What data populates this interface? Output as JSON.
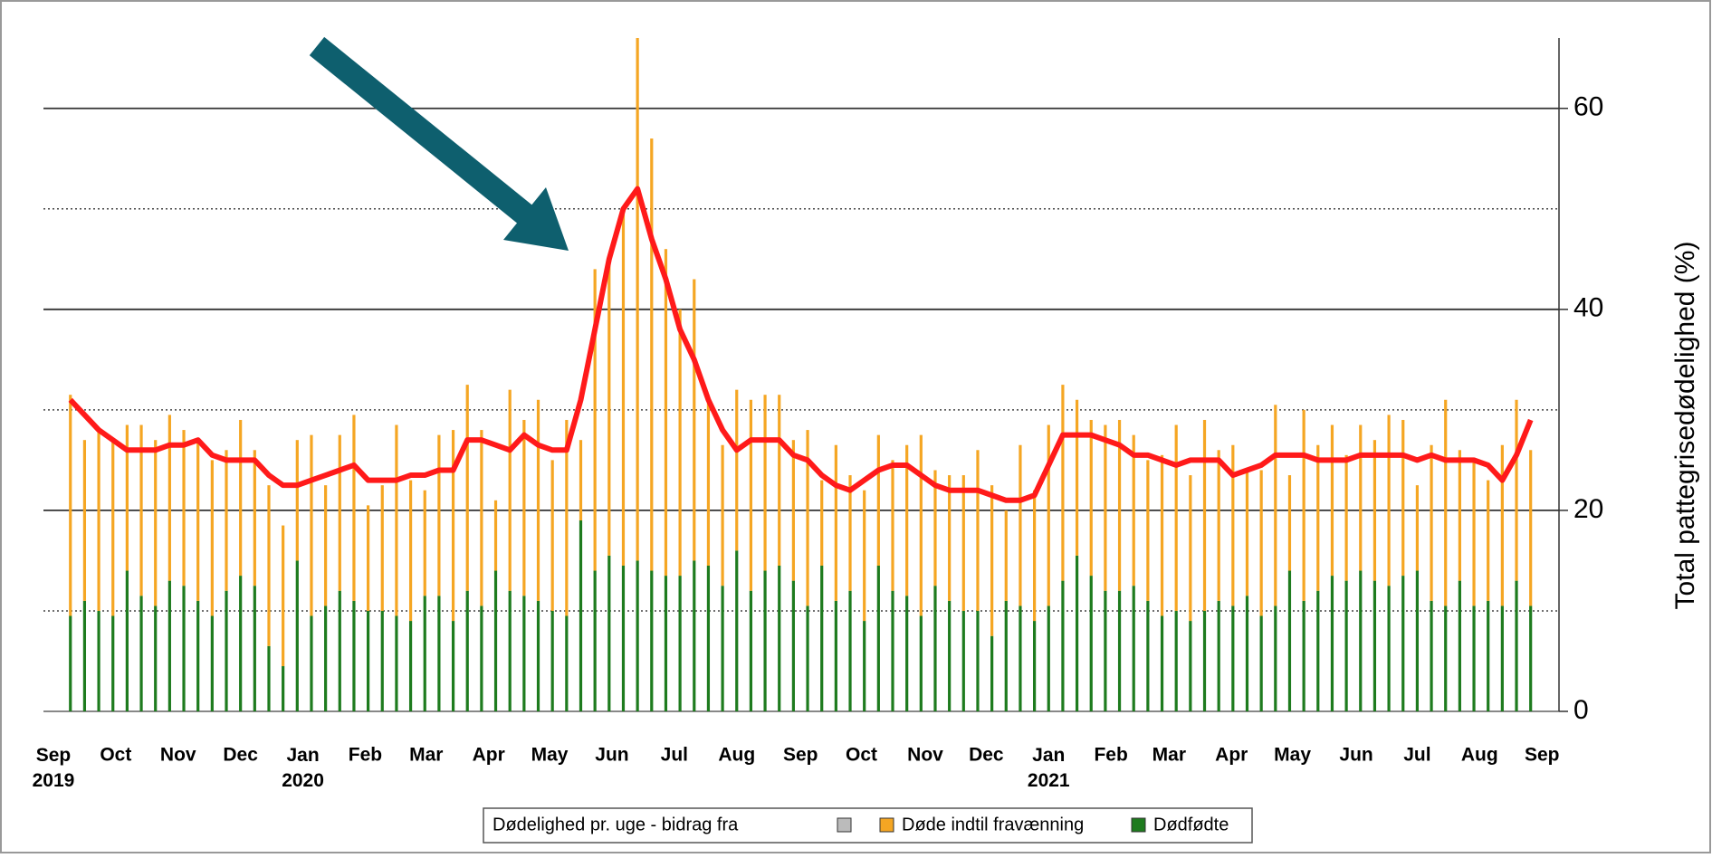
{
  "chart_data": {
    "type": "bar",
    "stacked": true,
    "ylabel": "Total pattegrisedødelighed (%)",
    "legend_title": "Dødelighed pr. uge - bidrag fra",
    "ylim": [
      0,
      67
    ],
    "yticks": [
      0,
      20,
      40,
      60
    ],
    "yminor": [
      10,
      30,
      50
    ],
    "grid": true,
    "xlim": [
      -1.9,
      105
    ],
    "xticks": [
      {
        "value": -1.2,
        "label": "Sep 2019"
      },
      {
        "value": 3.2,
        "label": "Oct"
      },
      {
        "value": 7.6,
        "label": "Nov"
      },
      {
        "value": 12,
        "label": "Dec"
      },
      {
        "value": 16.4,
        "label": "Jan 2020"
      },
      {
        "value": 20.8,
        "label": "Feb"
      },
      {
        "value": 25.1,
        "label": "Mar"
      },
      {
        "value": 29.5,
        "label": "Apr"
      },
      {
        "value": 33.8,
        "label": "May"
      },
      {
        "value": 38.2,
        "label": "Jun"
      },
      {
        "value": 42.6,
        "label": "Jul"
      },
      {
        "value": 47,
        "label": "Aug"
      },
      {
        "value": 51.5,
        "label": "Sep"
      },
      {
        "value": 55.8,
        "label": "Oct"
      },
      {
        "value": 60.3,
        "label": "Nov"
      },
      {
        "value": 64.6,
        "label": "Dec"
      },
      {
        "value": 69,
        "label": "Jan 2021"
      },
      {
        "value": 73.4,
        "label": "Feb"
      },
      {
        "value": 77.5,
        "label": "Mar"
      },
      {
        "value": 81.9,
        "label": "Apr"
      },
      {
        "value": 86.2,
        "label": "May"
      },
      {
        "value": 90.7,
        "label": "Jun"
      },
      {
        "value": 95,
        "label": "Jul"
      },
      {
        "value": 99.4,
        "label": "Aug"
      },
      {
        "value": 103.8,
        "label": "Sep"
      }
    ],
    "series": [
      {
        "name": "Dødfødte",
        "color": "#1e7b1e",
        "values": [
          9.5,
          11,
          10,
          9.5,
          14,
          11.5,
          10.5,
          13,
          12.5,
          11,
          9.5,
          12,
          13.5,
          12.5,
          6.5,
          4.5,
          15,
          9.5,
          10.5,
          12,
          11,
          10,
          10,
          9.5,
          9,
          11.5,
          11.5,
          9,
          12,
          10.5,
          14,
          12,
          11.5,
          11,
          10,
          9.5,
          19,
          14,
          15.5,
          14.5,
          15,
          14,
          13.5,
          13.5,
          15,
          14.5,
          12.5,
          16,
          12,
          14,
          14.5,
          13,
          10.5,
          14.5,
          11,
          12,
          9,
          14.5,
          12,
          11.5,
          9.5,
          12.5,
          11,
          10,
          10,
          7.5,
          11,
          10.5,
          9,
          10.5,
          13,
          15.5,
          13.5,
          12,
          12,
          12.5,
          11,
          9.5,
          10,
          9,
          10,
          11,
          10.5,
          11.5,
          9.5,
          10.5,
          14,
          11,
          12,
          13.5,
          13,
          14,
          13,
          12.5,
          13.5,
          14,
          11,
          10.5,
          13,
          10.5,
          11,
          10.5,
          13,
          10.5
        ]
      },
      {
        "name": "Døde indtil fravænning",
        "color": "#f5a623",
        "values": [
          22,
          16,
          18,
          17.5,
          14.5,
          17,
          16.5,
          16.5,
          15.5,
          16,
          15.5,
          14,
          15.5,
          13.5,
          16,
          14,
          12,
          18,
          12,
          15.5,
          18.5,
          10.5,
          12.5,
          19,
          14,
          10.5,
          16,
          19,
          20.5,
          17.5,
          7,
          20,
          17.5,
          20,
          15,
          19.5,
          8,
          30,
          29,
          35.5,
          52,
          43,
          32.5,
          26.5,
          28,
          16.5,
          14,
          16,
          19,
          17.5,
          17,
          14,
          17.5,
          8.5,
          15.5,
          11.5,
          13,
          13,
          13,
          15,
          18,
          11.5,
          12.5,
          13.5,
          16,
          15,
          9,
          16,
          13,
          18,
          19.5,
          15.5,
          15.5,
          16.5,
          17,
          15,
          14,
          16,
          18.5,
          14.5,
          19,
          15,
          16,
          12.5,
          14.5,
          20,
          9.5,
          19,
          14.5,
          15,
          12.5,
          14.5,
          14,
          17,
          15.5,
          8.5,
          15.5,
          20.5,
          13,
          14.5,
          12,
          16,
          18,
          15.5
        ]
      }
    ],
    "line": {
      "color": "#ff1a1a",
      "values": [
        31,
        29.5,
        28,
        27,
        26,
        26,
        26,
        26.5,
        26.5,
        27,
        25.5,
        25,
        25,
        25,
        23.5,
        22.5,
        22.5,
        23,
        23.5,
        24,
        24.5,
        23,
        23,
        23,
        23.5,
        23.5,
        24,
        24,
        27,
        27,
        26.5,
        26,
        27.5,
        26.5,
        26,
        26,
        31,
        38,
        45,
        50,
        52,
        47,
        43,
        38,
        35,
        31,
        28,
        26,
        27,
        27,
        27,
        25.5,
        25,
        23.5,
        22.5,
        22,
        23,
        24,
        24.5,
        24.5,
        23.5,
        22.5,
        22,
        22,
        22,
        21.5,
        21,
        21,
        21.5,
        24.5,
        27.5,
        27.5,
        27.5,
        27,
        26.5,
        25.5,
        25.5,
        25,
        24.5,
        25,
        25,
        25,
        23.5,
        24,
        24.5,
        25.5,
        25.5,
        25.5,
        25,
        25,
        25,
        25.5,
        25.5,
        25.5,
        25.5,
        25,
        25.5,
        25,
        25,
        25,
        24.5,
        23,
        25.5,
        29
      ]
    }
  }
}
